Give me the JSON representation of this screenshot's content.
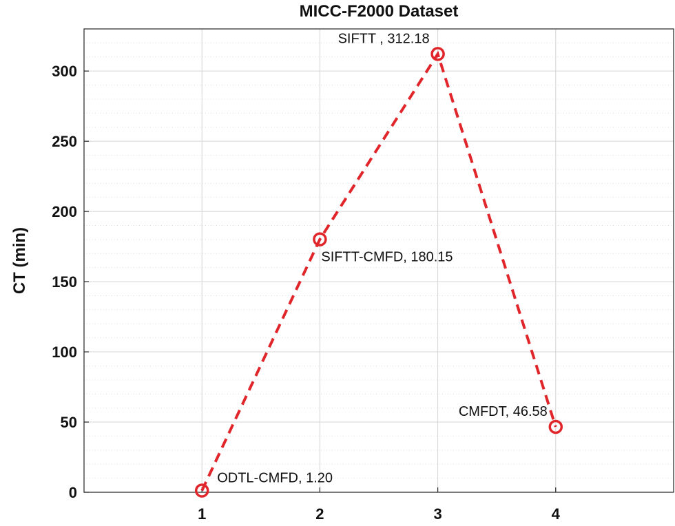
{
  "chart_data": {
    "type": "line",
    "title": "MICC-F2000 Dataset",
    "xlabel": "",
    "ylabel": "CT (min)",
    "x": [
      1,
      2,
      3,
      4
    ],
    "xlim": [
      0,
      5
    ],
    "ylim": [
      0,
      330
    ],
    "xticks": [
      "1",
      "2",
      "3",
      "4"
    ],
    "yticks": [
      "0",
      "50",
      "100",
      "150",
      "200",
      "250",
      "300"
    ],
    "grid": true,
    "minor_grid": true,
    "line_style": "dashed",
    "marker": "circle",
    "color": "#e0262b",
    "series": [
      {
        "values": [
          1.2,
          180.15,
          312.18,
          46.58
        ]
      }
    ],
    "annotations": [
      {
        "x": 1,
        "y": 1.2,
        "text": "ODTL-CMFD, 1.20",
        "position": "upper-right"
      },
      {
        "x": 2,
        "y": 180.15,
        "text": "SIFTT-CMFD, 180.15",
        "position": "lower-right"
      },
      {
        "x": 3,
        "y": 312.18,
        "text": "SIFTT , 312.18",
        "position": "upper-left"
      },
      {
        "x": 4,
        "y": 46.58,
        "text": "CMFDT, 46.58",
        "position": "upper-left"
      }
    ]
  }
}
